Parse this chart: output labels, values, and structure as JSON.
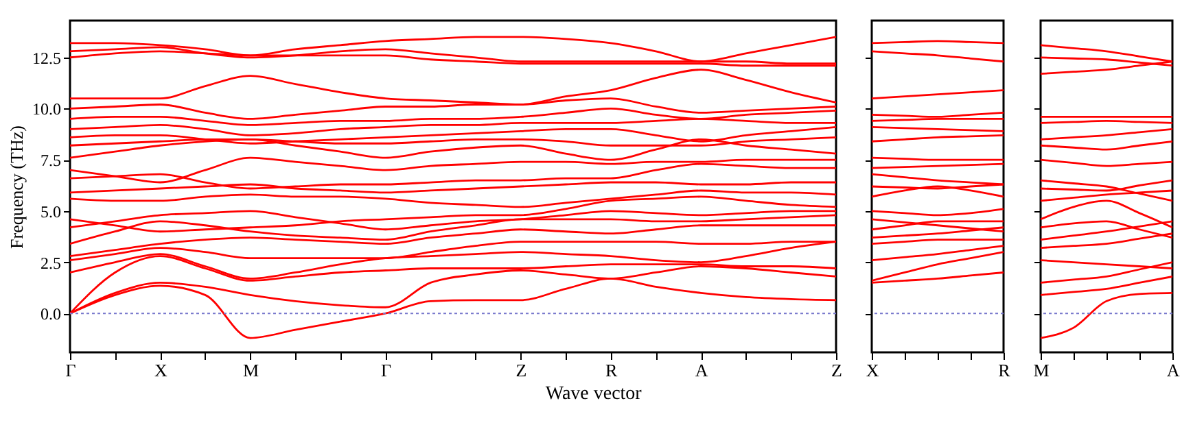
{
  "chart_data": [
    {
      "type": "line",
      "ylabel": "Frequency (THz)",
      "xlabel": "Wave vector",
      "ylim": [
        -1.9,
        14.3
      ],
      "categories": [
        "Γ",
        null,
        "X",
        null,
        "M",
        null,
        null,
        "Γ",
        null,
        null,
        "Z",
        null,
        "R",
        null,
        "A",
        null,
        null,
        "Z"
      ],
      "yticks": [
        {
          "value": 0,
          "label": "0.0"
        },
        {
          "value": 2.5,
          "label": "2.5"
        },
        {
          "value": 5,
          "label": "5.0"
        },
        {
          "value": 7.5,
          "label": "7.5"
        },
        {
          "value": 10,
          "label": "10.0"
        },
        {
          "value": 12.5,
          "label": "12.5"
        }
      ],
      "ref_lines": [
        {
          "axis": "y",
          "value": 0,
          "color": "#7777cc",
          "line_style": "dotted"
        }
      ],
      "series": [
        {
          "color": "#ff0000",
          "values": [
            0,
            0.9,
            1.35,
            0.9,
            -1.2,
            -0.8,
            -0.4,
            0,
            0.6,
            0.65,
            0.65,
            1.2,
            1.7,
            1.3,
            1.0,
            0.8,
            0.7,
            0.65
          ]
        },
        {
          "color": "#ff0000",
          "values": [
            0,
            1.0,
            1.5,
            1.3,
            0.9,
            0.6,
            0.4,
            0.3,
            1.5,
            1.9,
            2.1,
            1.9,
            1.7,
            2.0,
            2.3,
            2.2,
            2.0,
            1.8
          ]
        },
        {
          "color": "#ff0000",
          "values": [
            0,
            2.0,
            2.8,
            2.2,
            1.6,
            1.8,
            2.0,
            2.1,
            2.2,
            2.2,
            2.2,
            2.3,
            2.4,
            2.4,
            2.4,
            2.3,
            2.3,
            2.2
          ]
        },
        {
          "color": "#ff0000",
          "values": [
            2.0,
            2.5,
            2.9,
            2.3,
            1.7,
            2.0,
            2.4,
            2.7,
            2.8,
            2.9,
            3.0,
            2.9,
            2.8,
            2.6,
            2.5,
            2.8,
            3.2,
            3.5
          ]
        },
        {
          "color": "#ff0000",
          "values": [
            2.6,
            2.9,
            3.2,
            3.0,
            2.7,
            2.7,
            2.7,
            2.7,
            3.0,
            3.3,
            3.5,
            3.5,
            3.5,
            3.5,
            3.4,
            3.4,
            3.5,
            3.5
          ]
        },
        {
          "color": "#ff0000",
          "values": [
            2.8,
            3.1,
            3.4,
            3.6,
            3.7,
            3.6,
            3.5,
            3.4,
            3.7,
            3.9,
            4.1,
            4.0,
            3.9,
            4.1,
            4.3,
            4.3,
            4.3,
            4.3
          ]
        },
        {
          "color": "#ff0000",
          "values": [
            3.4,
            4.0,
            4.5,
            4.3,
            4.0,
            3.8,
            3.7,
            3.6,
            4.0,
            4.3,
            4.6,
            4.6,
            4.6,
            4.5,
            4.5,
            4.6,
            4.7,
            4.8
          ]
        },
        {
          "color": "#ff0000",
          "values": [
            4.2,
            4.5,
            4.8,
            4.9,
            5.0,
            4.7,
            4.4,
            4.1,
            4.3,
            4.5,
            4.6,
            4.8,
            5.0,
            4.9,
            4.8,
            4.9,
            5.0,
            5.0
          ]
        },
        {
          "color": "#ff0000",
          "values": [
            4.6,
            4.3,
            4.0,
            4.1,
            4.2,
            4.3,
            4.5,
            4.6,
            4.7,
            4.8,
            4.8,
            5.1,
            5.5,
            5.6,
            5.7,
            5.5,
            5.3,
            5.2
          ]
        },
        {
          "color": "#ff0000",
          "values": [
            5.6,
            5.5,
            5.5,
            5.7,
            5.8,
            5.7,
            5.7,
            5.6,
            5.4,
            5.3,
            5.2,
            5.4,
            5.6,
            5.8,
            6.0,
            5.9,
            5.9,
            5.8
          ]
        },
        {
          "color": "#ff0000",
          "values": [
            5.9,
            6.0,
            6.1,
            6.2,
            6.3,
            6.1,
            6.0,
            5.9,
            6.0,
            6.1,
            6.2,
            6.3,
            6.4,
            6.4,
            6.3,
            6.3,
            6.4,
            6.4
          ]
        },
        {
          "color": "#ff0000",
          "values": [
            6.6,
            6.7,
            6.8,
            6.4,
            6.1,
            6.2,
            6.3,
            6.3,
            6.4,
            6.5,
            6.5,
            6.6,
            6.6,
            7.0,
            7.3,
            7.2,
            7.1,
            7.1
          ]
        },
        {
          "color": "#ff0000",
          "values": [
            7.0,
            6.7,
            6.4,
            7.0,
            7.6,
            7.4,
            7.2,
            7.0,
            7.2,
            7.3,
            7.4,
            7.4,
            7.3,
            7.4,
            7.4,
            7.5,
            7.5,
            7.5
          ]
        },
        {
          "color": "#ff0000",
          "values": [
            7.6,
            7.9,
            8.2,
            8.4,
            8.5,
            8.2,
            7.9,
            7.6,
            7.9,
            8.1,
            8.2,
            7.8,
            7.5,
            8.0,
            8.5,
            8.2,
            8.0,
            7.8
          ]
        },
        {
          "color": "#ff0000",
          "values": [
            8.2,
            8.3,
            8.4,
            8.5,
            8.5,
            8.4,
            8.3,
            8.3,
            8.4,
            8.5,
            8.5,
            8.4,
            8.2,
            8.2,
            8.2,
            8.4,
            8.5,
            8.6
          ]
        },
        {
          "color": "#ff0000",
          "values": [
            8.6,
            8.7,
            8.7,
            8.5,
            8.3,
            8.4,
            8.5,
            8.6,
            8.7,
            8.8,
            8.9,
            9.0,
            9.0,
            8.7,
            8.4,
            8.7,
            8.9,
            9.1
          ]
        },
        {
          "color": "#ff0000",
          "values": [
            9.0,
            9.1,
            9.2,
            9.0,
            8.7,
            8.8,
            9.0,
            9.1,
            9.2,
            9.2,
            9.3,
            9.3,
            9.3,
            9.4,
            9.5,
            9.4,
            9.3,
            9.3
          ]
        },
        {
          "color": "#ff0000",
          "values": [
            9.5,
            9.6,
            9.6,
            9.4,
            9.2,
            9.3,
            9.4,
            9.4,
            9.5,
            9.5,
            9.6,
            9.8,
            10.0,
            9.7,
            9.5,
            9.7,
            9.8,
            9.9
          ]
        },
        {
          "color": "#ff0000",
          "values": [
            10.0,
            10.1,
            10.2,
            9.8,
            9.5,
            9.7,
            9.9,
            10.1,
            10.1,
            10.2,
            10.2,
            10.4,
            10.5,
            10.1,
            9.8,
            9.9,
            10.0,
            10.1
          ]
        },
        {
          "color": "#ff0000",
          "values": [
            10.5,
            10.5,
            10.5,
            11.1,
            11.6,
            11.2,
            10.8,
            10.5,
            10.4,
            10.3,
            10.2,
            10.6,
            10.9,
            11.5,
            11.9,
            11.4,
            10.8,
            10.3
          ]
        },
        {
          "color": "#ff0000",
          "values": [
            12.5,
            12.7,
            12.8,
            12.7,
            12.6,
            12.6,
            12.6,
            12.6,
            12.4,
            12.3,
            12.2,
            12.2,
            12.2,
            12.2,
            12.2,
            12.1,
            12.1,
            12.1
          ]
        },
        {
          "color": "#ff0000",
          "values": [
            12.8,
            12.9,
            13.0,
            12.7,
            12.5,
            12.6,
            12.8,
            12.9,
            12.7,
            12.5,
            12.3,
            12.3,
            12.3,
            12.3,
            12.3,
            12.3,
            12.2,
            12.2
          ]
        },
        {
          "color": "#ff0000",
          "values": [
            13.2,
            13.2,
            13.1,
            12.9,
            12.6,
            12.9,
            13.1,
            13.3,
            13.4,
            13.5,
            13.5,
            13.4,
            13.2,
            12.8,
            12.3,
            12.7,
            13.1,
            13.5
          ]
        }
      ]
    },
    {
      "type": "line",
      "tick_labels": "x",
      "ylim": [
        -1.9,
        14.3
      ],
      "categories": [
        "X",
        null,
        null,
        null,
        "R"
      ],
      "yticks": [
        {
          "value": 0,
          "label": null
        },
        {
          "value": 2.5,
          "label": null
        },
        {
          "value": 5,
          "label": null
        },
        {
          "value": 7.5,
          "label": null
        },
        {
          "value": 10,
          "label": null
        },
        {
          "value": 12.5,
          "label": null
        }
      ],
      "ref_lines": [
        {
          "axis": "y",
          "value": 0,
          "color": "#7777cc",
          "line_style": "dotted"
        }
      ],
      "series": [
        {
          "color": "#ff0000",
          "values": [
            1.5,
            1.6,
            1.7,
            1.85,
            2.0
          ]
        },
        {
          "color": "#ff0000",
          "values": [
            1.6,
            2.0,
            2.4,
            2.7,
            3.0
          ]
        },
        {
          "color": "#ff0000",
          "values": [
            2.6,
            2.75,
            2.9,
            3.1,
            3.3
          ]
        },
        {
          "color": "#ff0000",
          "values": [
            3.4,
            3.5,
            3.6,
            3.6,
            3.6
          ]
        },
        {
          "color": "#ff0000",
          "values": [
            3.7,
            3.8,
            3.9,
            4.05,
            4.2
          ]
        },
        {
          "color": "#ff0000",
          "values": [
            4.1,
            4.3,
            4.5,
            4.5,
            4.5
          ]
        },
        {
          "color": "#ff0000",
          "values": [
            4.6,
            4.45,
            4.3,
            4.15,
            4.0
          ]
        },
        {
          "color": "#ff0000",
          "values": [
            5.0,
            4.9,
            4.8,
            4.9,
            5.1
          ]
        },
        {
          "color": "#ff0000",
          "values": [
            5.7,
            6.0,
            6.2,
            6.0,
            5.7
          ]
        },
        {
          "color": "#ff0000",
          "values": [
            6.2,
            6.15,
            6.1,
            6.2,
            6.3
          ]
        },
        {
          "color": "#ff0000",
          "values": [
            6.8,
            6.65,
            6.5,
            6.4,
            6.3
          ]
        },
        {
          "color": "#ff0000",
          "values": [
            7.1,
            7.15,
            7.2,
            7.25,
            7.3
          ]
        },
        {
          "color": "#ff0000",
          "values": [
            7.6,
            7.55,
            7.5,
            7.5,
            7.5
          ]
        },
        {
          "color": "#ff0000",
          "values": [
            8.4,
            8.5,
            8.6,
            8.65,
            8.7
          ]
        },
        {
          "color": "#ff0000",
          "values": [
            9.1,
            9.05,
            9.0,
            8.95,
            8.9
          ]
        },
        {
          "color": "#ff0000",
          "values": [
            9.4,
            9.45,
            9.5,
            9.5,
            9.5
          ]
        },
        {
          "color": "#ff0000",
          "values": [
            9.7,
            9.65,
            9.6,
            9.7,
            9.8
          ]
        },
        {
          "color": "#ff0000",
          "values": [
            10.5,
            10.6,
            10.7,
            10.8,
            10.9
          ]
        },
        {
          "color": "#ff0000",
          "values": [
            12.8,
            12.7,
            12.6,
            12.45,
            12.3
          ]
        },
        {
          "color": "#ff0000",
          "values": [
            13.2,
            13.25,
            13.3,
            13.25,
            13.2
          ]
        }
      ]
    },
    {
      "type": "line",
      "tick_labels": "x",
      "ylim": [
        -1.9,
        14.3
      ],
      "categories": [
        "M",
        null,
        null,
        null,
        "A"
      ],
      "yticks": [
        {
          "value": 0,
          "label": null
        },
        {
          "value": 2.5,
          "label": null
        },
        {
          "value": 5,
          "label": null
        },
        {
          "value": 7.5,
          "label": null
        },
        {
          "value": 10,
          "label": null
        },
        {
          "value": 12.5,
          "label": null
        }
      ],
      "ref_lines": [
        {
          "axis": "y",
          "value": 0,
          "color": "#7777cc",
          "line_style": "dotted"
        }
      ],
      "series": [
        {
          "color": "#ff0000",
          "values": [
            -1.2,
            -0.7,
            0.6,
            0.95,
            1.0
          ]
        },
        {
          "color": "#ff0000",
          "values": [
            0.9,
            1.05,
            1.2,
            1.5,
            1.8
          ]
        },
        {
          "color": "#ff0000",
          "values": [
            1.5,
            1.65,
            1.8,
            2.15,
            2.5
          ]
        },
        {
          "color": "#ff0000",
          "values": [
            2.6,
            2.5,
            2.4,
            2.3,
            2.2
          ]
        },
        {
          "color": "#ff0000",
          "values": [
            3.2,
            3.3,
            3.4,
            3.65,
            3.9
          ]
        },
        {
          "color": "#ff0000",
          "values": [
            3.6,
            3.8,
            4.0,
            4.25,
            4.5
          ]
        },
        {
          "color": "#ff0000",
          "values": [
            4.2,
            4.4,
            4.5,
            4.1,
            3.7
          ]
        },
        {
          "color": "#ff0000",
          "values": [
            4.6,
            5.2,
            5.5,
            4.9,
            4.2
          ]
        },
        {
          "color": "#ff0000",
          "values": [
            5.5,
            5.65,
            5.8,
            5.9,
            6.0
          ]
        },
        {
          "color": "#ff0000",
          "values": [
            6.1,
            6.05,
            6.0,
            6.25,
            6.5
          ]
        },
        {
          "color": "#ff0000",
          "values": [
            6.5,
            6.35,
            6.2,
            5.85,
            5.5
          ]
        },
        {
          "color": "#ff0000",
          "values": [
            7.5,
            7.35,
            7.2,
            7.3,
            7.4
          ]
        },
        {
          "color": "#ff0000",
          "values": [
            8.2,
            8.1,
            8.0,
            8.2,
            8.4
          ]
        },
        {
          "color": "#ff0000",
          "values": [
            8.5,
            8.6,
            8.7,
            8.85,
            9.0
          ]
        },
        {
          "color": "#ff0000",
          "values": [
            9.3,
            9.35,
            9.4,
            9.35,
            9.3
          ]
        },
        {
          "color": "#ff0000",
          "values": [
            9.6,
            9.6,
            9.6,
            9.6,
            9.6
          ]
        },
        {
          "color": "#ff0000",
          "values": [
            11.7,
            11.8,
            11.9,
            12.1,
            12.3
          ]
        },
        {
          "color": "#ff0000",
          "values": [
            12.5,
            12.45,
            12.4,
            12.25,
            12.1
          ]
        },
        {
          "color": "#ff0000",
          "values": [
            13.1,
            12.95,
            12.8,
            12.55,
            12.3
          ]
        }
      ]
    }
  ]
}
